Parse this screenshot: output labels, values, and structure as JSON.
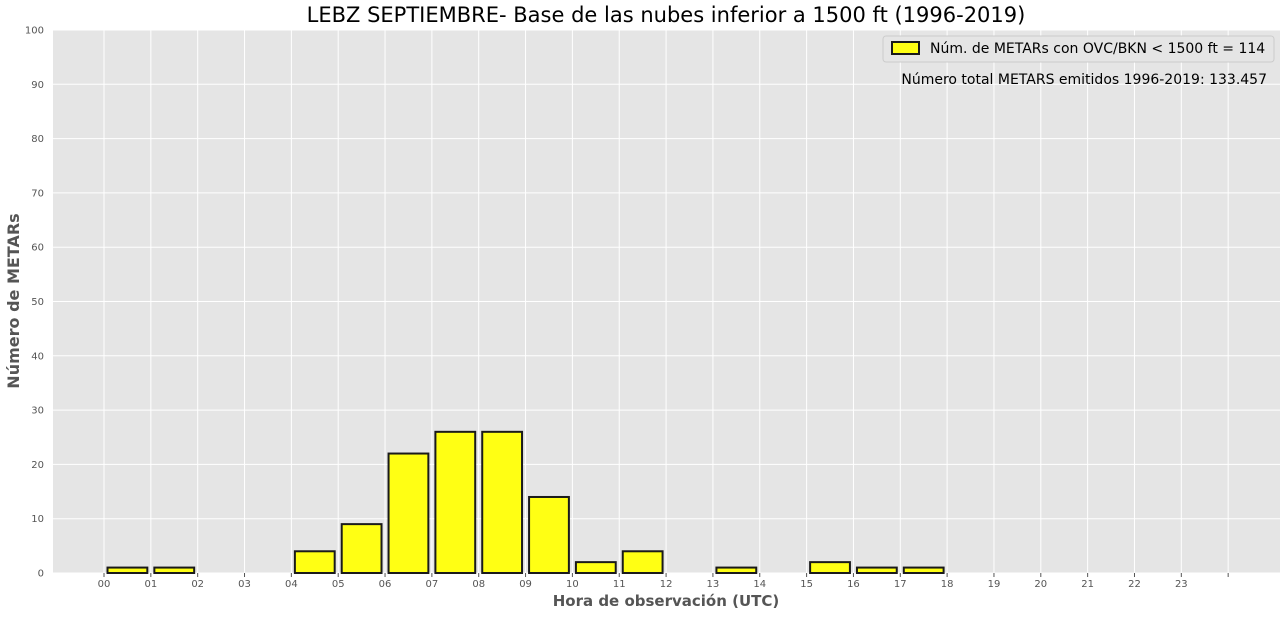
{
  "chart_data": {
    "type": "bar",
    "title": "LEBZ SEPTIEMBRE- Base de las nubes inferior a 1500 ft (1996-2019)",
    "xlabel": "Hora de observación (UTC)",
    "ylabel": "Número de METARs",
    "ylim": [
      0,
      100
    ],
    "yticks": [
      "0",
      "10",
      "20",
      "30",
      "40",
      "50",
      "60",
      "70",
      "80",
      "90",
      "100"
    ],
    "xticks": [
      "00",
      "01",
      "02",
      "03",
      "04",
      "05",
      "06",
      "07",
      "08",
      "09",
      "10",
      "11",
      "12",
      "13",
      "14",
      "15",
      "16",
      "17",
      "18",
      "19",
      "20",
      "21",
      "22",
      "23",
      ""
    ],
    "categories": [
      "00",
      "01",
      "02",
      "03",
      "04",
      "05",
      "06",
      "07",
      "08",
      "09",
      "10",
      "11",
      "12",
      "13",
      "14",
      "15",
      "16",
      "17",
      "18",
      "19",
      "20",
      "21",
      "22",
      "23"
    ],
    "values": [
      1,
      1,
      0,
      0,
      4,
      9,
      22,
      26,
      26,
      14,
      2,
      4,
      0,
      1,
      0,
      2,
      1,
      1,
      0,
      0,
      0,
      0,
      0,
      0
    ],
    "legend": {
      "label": "Núm. de METARs con OVC/BKN < 1500 ft = 114",
      "placement": "top-right"
    },
    "annotation": "Número total METARS emitidos 1996-2019: 133.457",
    "grid": true,
    "colors": {
      "bar_fill": "#ffff14",
      "bar_edge": "#1a1a1a",
      "plot_bg": "#e5e5e5",
      "grid": "#ffffff",
      "text": "#555555",
      "title": "#000000"
    }
  }
}
